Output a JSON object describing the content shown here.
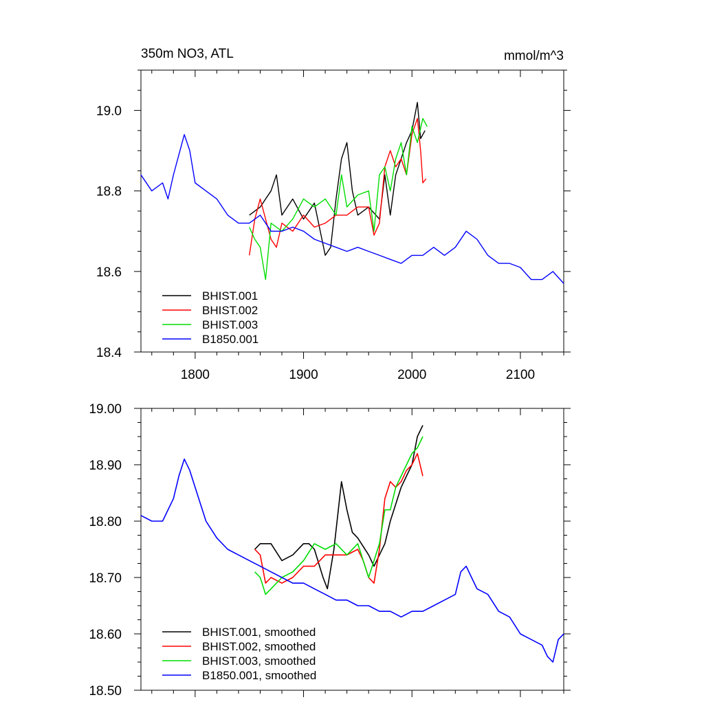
{
  "colors": {
    "black": "#000000",
    "red": "#ff0000",
    "green": "#00dd00",
    "blue": "#0000ff"
  },
  "chart_data": [
    {
      "type": "line",
      "title": "350m NO3, ATL",
      "units": "mmol/m^3",
      "xlabel": "",
      "ylabel": "",
      "xlim": [
        1750,
        2140
      ],
      "ylim": [
        18.4,
        19.1
      ],
      "x_ticks": [
        1800,
        1900,
        2000,
        2100
      ],
      "x_tick_labels": [
        "1800",
        "1900",
        "2000",
        "2100"
      ],
      "y_ticks": [
        18.4,
        18.6,
        18.8,
        19.0
      ],
      "y_tick_labels": [
        "18.4",
        "18.6",
        "18.8",
        "19.0"
      ],
      "grid": false,
      "legend_position": "bottom-left",
      "series": [
        {
          "name": "BHIST.001",
          "color": "#000000",
          "x": [
            1850,
            1860,
            1870,
            1875,
            1880,
            1890,
            1900,
            1910,
            1920,
            1925,
            1930,
            1935,
            1940,
            1945,
            1950,
            1960,
            1970,
            1975,
            1980,
            1985,
            1990,
            1995,
            2000,
            2005,
            2008,
            2012
          ],
          "y": [
            18.74,
            18.76,
            18.8,
            18.84,
            18.74,
            18.78,
            18.73,
            18.77,
            18.64,
            18.66,
            18.78,
            18.88,
            18.92,
            18.8,
            18.74,
            18.76,
            18.73,
            18.84,
            18.74,
            18.84,
            18.88,
            18.92,
            18.95,
            19.02,
            18.93,
            18.95
          ]
        },
        {
          "name": "BHIST.002",
          "color": "#ff0000",
          "x": [
            1850,
            1855,
            1860,
            1870,
            1875,
            1880,
            1890,
            1900,
            1910,
            1920,
            1930,
            1940,
            1950,
            1960,
            1965,
            1970,
            1975,
            1980,
            1985,
            1990,
            1995,
            2000,
            2005,
            2008,
            2010,
            2013
          ],
          "y": [
            18.64,
            18.73,
            18.78,
            18.68,
            18.66,
            18.72,
            18.7,
            18.74,
            18.71,
            18.72,
            18.74,
            18.74,
            18.76,
            18.76,
            18.69,
            18.72,
            18.86,
            18.9,
            18.86,
            18.88,
            18.84,
            18.94,
            18.98,
            18.9,
            18.82,
            18.83
          ]
        },
        {
          "name": "BHIST.003",
          "color": "#00dd00",
          "x": [
            1850,
            1855,
            1860,
            1865,
            1870,
            1880,
            1890,
            1900,
            1910,
            1920,
            1930,
            1935,
            1940,
            1950,
            1960,
            1965,
            1970,
            1975,
            1980,
            1985,
            1990,
            1995,
            2000,
            2005,
            2010,
            2014
          ],
          "y": [
            18.71,
            18.68,
            18.66,
            18.58,
            18.72,
            18.7,
            18.73,
            18.78,
            18.76,
            18.78,
            18.74,
            18.84,
            18.76,
            18.79,
            18.8,
            18.7,
            18.84,
            18.86,
            18.8,
            18.88,
            18.92,
            18.84,
            18.96,
            18.92,
            18.98,
            18.96
          ]
        },
        {
          "name": "B1850.001",
          "color": "#0000ff",
          "x": [
            1750,
            1760,
            1770,
            1775,
            1780,
            1790,
            1795,
            1800,
            1810,
            1820,
            1830,
            1840,
            1850,
            1860,
            1870,
            1880,
            1890,
            1900,
            1910,
            1920,
            1930,
            1940,
            1950,
            1960,
            1970,
            1980,
            1990,
            2000,
            2010,
            2020,
            2030,
            2040,
            2050,
            2060,
            2070,
            2080,
            2090,
            2100,
            2110,
            2120,
            2130,
            2140
          ],
          "y": [
            18.84,
            18.8,
            18.82,
            18.78,
            18.84,
            18.94,
            18.9,
            18.82,
            18.8,
            18.78,
            18.74,
            18.72,
            18.72,
            18.74,
            18.7,
            18.7,
            18.71,
            18.7,
            18.68,
            18.67,
            18.66,
            18.65,
            18.66,
            18.65,
            18.64,
            18.63,
            18.62,
            18.64,
            18.64,
            18.66,
            18.64,
            18.66,
            18.7,
            18.68,
            18.64,
            18.62,
            18.62,
            18.61,
            18.58,
            18.58,
            18.6,
            18.57
          ]
        }
      ]
    },
    {
      "type": "line",
      "title": "",
      "xlabel": "",
      "ylabel": "",
      "xlim": [
        1750,
        2140
      ],
      "ylim": [
        18.5,
        19.0
      ],
      "x_ticks": [
        1800,
        1900,
        2000,
        2100
      ],
      "x_tick_labels": [
        "",
        "",
        "",
        ""
      ],
      "y_ticks": [
        18.5,
        18.6,
        18.7,
        18.8,
        18.9,
        19.0
      ],
      "y_tick_labels": [
        "18.50",
        "18.60",
        "18.70",
        "18.80",
        "18.90",
        "19.00"
      ],
      "grid": false,
      "legend_position": "bottom-left",
      "series": [
        {
          "name": "BHIST.001, smoothed",
          "color": "#000000",
          "x": [
            1855,
            1860,
            1870,
            1880,
            1890,
            1900,
            1905,
            1910,
            1918,
            1922,
            1928,
            1935,
            1940,
            1945,
            1950,
            1960,
            1965,
            1970,
            1975,
            1980,
            1985,
            1990,
            1995,
            2000,
            2005,
            2010
          ],
          "y": [
            18.75,
            18.76,
            18.76,
            18.73,
            18.74,
            18.76,
            18.76,
            18.75,
            18.7,
            18.68,
            18.75,
            18.87,
            18.82,
            18.78,
            18.77,
            18.74,
            18.72,
            18.74,
            18.76,
            18.8,
            18.83,
            18.86,
            18.88,
            18.9,
            18.95,
            18.97
          ]
        },
        {
          "name": "BHIST.002, smoothed",
          "color": "#ff0000",
          "x": [
            1855,
            1860,
            1865,
            1870,
            1880,
            1890,
            1900,
            1910,
            1920,
            1930,
            1940,
            1950,
            1955,
            1960,
            1965,
            1970,
            1975,
            1980,
            1985,
            1990,
            1995,
            2000,
            2005,
            2010
          ],
          "y": [
            18.75,
            18.74,
            18.69,
            18.7,
            18.69,
            18.7,
            18.72,
            18.72,
            18.74,
            18.74,
            18.74,
            18.75,
            18.73,
            18.7,
            18.69,
            18.75,
            18.84,
            18.87,
            18.86,
            18.87,
            18.89,
            18.9,
            18.92,
            18.88
          ]
        },
        {
          "name": "BHIST.003, smoothed",
          "color": "#00dd00",
          "x": [
            1855,
            1860,
            1865,
            1870,
            1880,
            1890,
            1900,
            1910,
            1920,
            1930,
            1940,
            1950,
            1960,
            1970,
            1975,
            1980,
            1985,
            1990,
            1995,
            2000,
            2005,
            2010
          ],
          "y": [
            18.71,
            18.7,
            18.67,
            18.68,
            18.7,
            18.71,
            18.73,
            18.76,
            18.75,
            18.76,
            18.74,
            18.76,
            18.7,
            18.76,
            18.82,
            18.82,
            18.86,
            18.88,
            18.9,
            18.92,
            18.93,
            18.95
          ]
        },
        {
          "name": "B1850.001, smoothed",
          "color": "#0000ff",
          "x": [
            1750,
            1760,
            1770,
            1780,
            1785,
            1790,
            1795,
            1800,
            1810,
            1820,
            1830,
            1840,
            1850,
            1860,
            1870,
            1880,
            1890,
            1900,
            1910,
            1920,
            1930,
            1940,
            1950,
            1960,
            1970,
            1980,
            1990,
            2000,
            2010,
            2020,
            2030,
            2040,
            2045,
            2050,
            2060,
            2070,
            2080,
            2090,
            2100,
            2110,
            2120,
            2125,
            2130,
            2135,
            2140
          ],
          "y": [
            18.81,
            18.8,
            18.8,
            18.84,
            18.88,
            18.91,
            18.89,
            18.86,
            18.8,
            18.77,
            18.75,
            18.74,
            18.73,
            18.72,
            18.71,
            18.7,
            18.69,
            18.69,
            18.68,
            18.67,
            18.66,
            18.66,
            18.65,
            18.65,
            18.64,
            18.64,
            18.63,
            18.64,
            18.64,
            18.65,
            18.66,
            18.67,
            18.71,
            18.72,
            18.68,
            18.67,
            18.64,
            18.63,
            18.6,
            18.59,
            18.58,
            18.56,
            18.55,
            18.59,
            18.6
          ]
        }
      ]
    }
  ]
}
